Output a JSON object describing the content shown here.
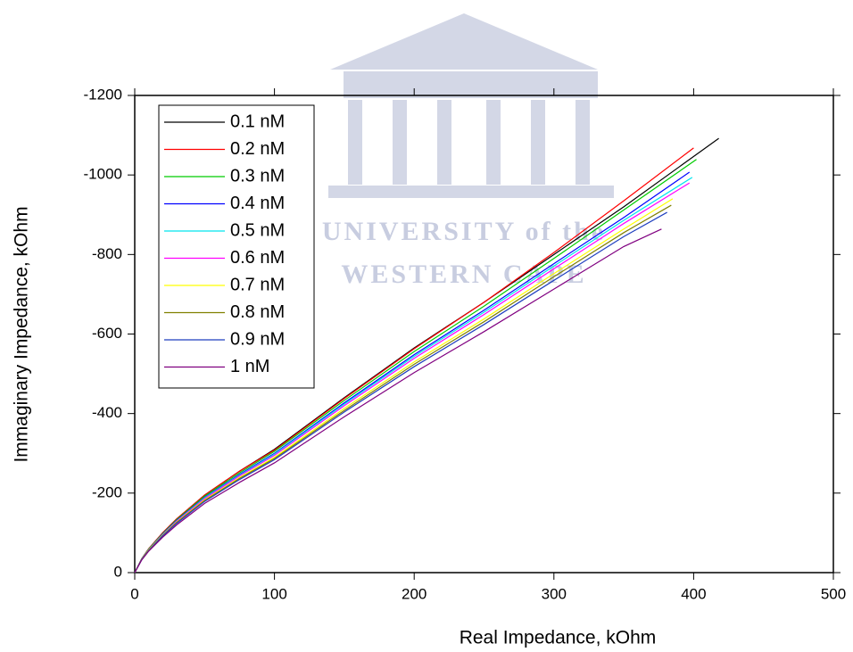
{
  "watermark": {
    "line1": "UNIVERSITY of the",
    "line2": "WESTERN CAPE"
  },
  "chart_data": {
    "type": "line",
    "xlabel": "Real Impedance, kOhm",
    "ylabel": "Immaginary Impedance, kOhm",
    "xlim": [
      0,
      500
    ],
    "xticks": [
      0,
      100,
      200,
      300,
      400,
      500
    ],
    "ylim": [
      0,
      -1200
    ],
    "yticks": [
      0,
      -200,
      -400,
      -600,
      -800,
      -1000,
      -1200
    ],
    "legend": "upper left",
    "series": [
      {
        "name": "0.1 nM",
        "color": "#000000",
        "x": [
          0,
          5,
          10,
          20,
          30,
          50,
          75,
          100,
          150,
          200,
          250,
          300,
          350,
          418
        ],
        "values": [
          0,
          -35,
          -60,
          -100,
          -135,
          -195,
          -255,
          -310,
          -440,
          -565,
          -680,
          -800,
          -920,
          -1092
        ]
      },
      {
        "name": "0.2 nM",
        "color": "#ff0000",
        "x": [
          0,
          5,
          10,
          20,
          30,
          50,
          75,
          100,
          150,
          200,
          250,
          300,
          350,
          400
        ],
        "values": [
          0,
          -35,
          -60,
          -100,
          -135,
          -195,
          -255,
          -308,
          -438,
          -563,
          -680,
          -805,
          -935,
          -1068
        ]
      },
      {
        "name": "0.3 nM",
        "color": "#00cc00",
        "x": [
          0,
          5,
          10,
          20,
          30,
          50,
          75,
          100,
          150,
          200,
          250,
          300,
          350,
          402
        ],
        "values": [
          0,
          -34,
          -59,
          -98,
          -133,
          -192,
          -251,
          -305,
          -433,
          -556,
          -670,
          -790,
          -912,
          -1039
        ]
      },
      {
        "name": "0.4 nM",
        "color": "#0000ff",
        "x": [
          0,
          5,
          10,
          20,
          30,
          50,
          75,
          100,
          150,
          200,
          250,
          300,
          350,
          397
        ],
        "values": [
          0,
          -34,
          -58,
          -97,
          -131,
          -189,
          -247,
          -300,
          -427,
          -548,
          -660,
          -777,
          -893,
          -1007
        ]
      },
      {
        "name": "0.5 nM",
        "color": "#00e5ee",
        "x": [
          0,
          5,
          10,
          20,
          30,
          50,
          75,
          100,
          150,
          200,
          250,
          300,
          350,
          399
        ],
        "values": [
          0,
          -34,
          -58,
          -96,
          -130,
          -188,
          -245,
          -298,
          -424,
          -544,
          -655,
          -771,
          -886,
          -994
        ]
      },
      {
        "name": "0.6 nM",
        "color": "#ff00ff",
        "x": [
          0,
          5,
          10,
          20,
          30,
          50,
          75,
          100,
          150,
          200,
          250,
          300,
          350,
          397
        ],
        "values": [
          0,
          -33,
          -57,
          -95,
          -129,
          -186,
          -243,
          -295,
          -420,
          -539,
          -649,
          -764,
          -878,
          -980
        ]
      },
      {
        "name": "0.7 nM",
        "color": "#ffff00",
        "x": [
          0,
          5,
          10,
          20,
          30,
          50,
          75,
          100,
          150,
          200,
          250,
          300,
          350,
          385
        ],
        "values": [
          0,
          -33,
          -57,
          -94,
          -127,
          -183,
          -239,
          -290,
          -413,
          -530,
          -638,
          -752,
          -864,
          -940
        ]
      },
      {
        "name": "0.8 nM",
        "color": "#808000",
        "x": [
          0,
          5,
          10,
          20,
          30,
          50,
          75,
          100,
          150,
          200,
          250,
          300,
          350,
          384
        ],
        "values": [
          0,
          -33,
          -56,
          -93,
          -126,
          -181,
          -237,
          -287,
          -408,
          -524,
          -631,
          -744,
          -855,
          -924
        ]
      },
      {
        "name": "0.9 nM",
        "color": "#1f3fbf",
        "x": [
          0,
          5,
          10,
          20,
          30,
          50,
          75,
          100,
          150,
          200,
          250,
          300,
          350,
          381
        ],
        "values": [
          0,
          -32,
          -55,
          -92,
          -124,
          -179,
          -234,
          -284,
          -404,
          -518,
          -624,
          -735,
          -845,
          -906
        ]
      },
      {
        "name": "1 nM",
        "color": "#800080",
        "x": [
          0,
          5,
          10,
          20,
          30,
          50,
          75,
          100,
          150,
          200,
          250,
          300,
          350,
          377
        ],
        "values": [
          0,
          -32,
          -54,
          -89,
          -120,
          -174,
          -227,
          -276,
          -392,
          -503,
          -606,
          -713,
          -820,
          -864
        ]
      }
    ]
  }
}
